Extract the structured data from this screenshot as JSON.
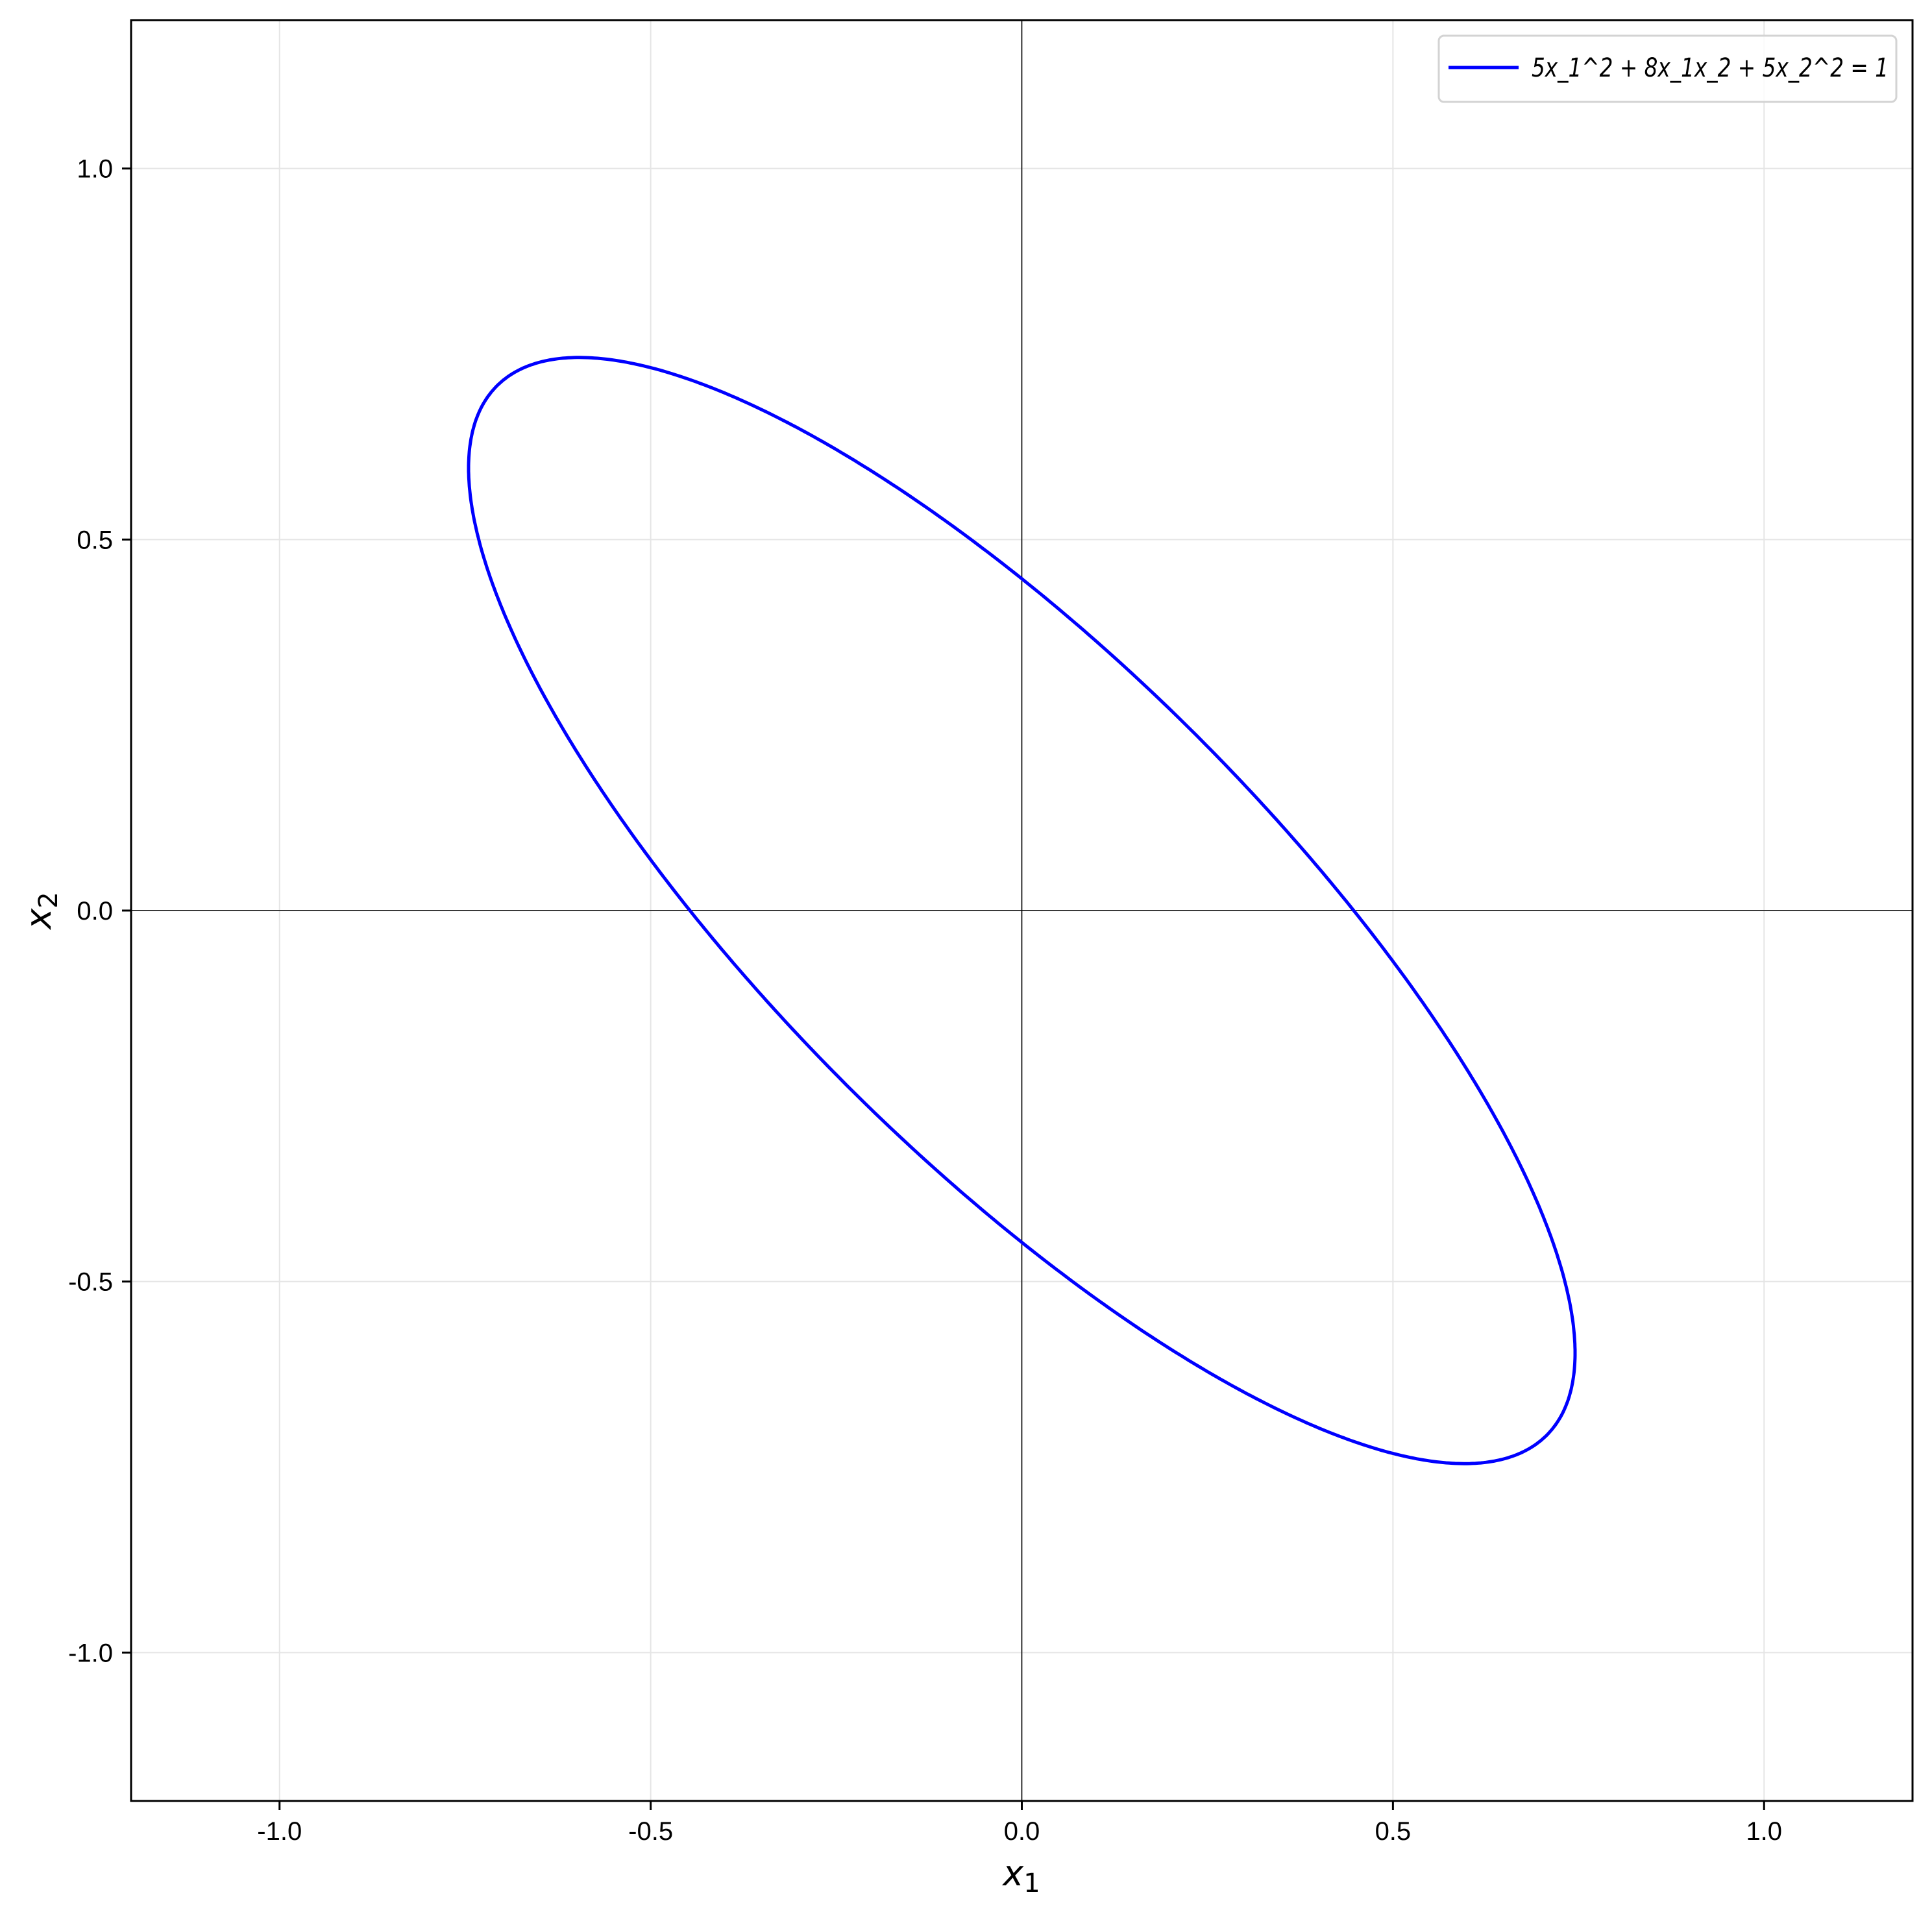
{
  "chart_data": {
    "type": "line",
    "title": "",
    "xlabel": "x_1",
    "ylabel": "x_2",
    "xlim": [
      -1.2,
      1.2
    ],
    "ylim": [
      -1.2,
      1.2
    ],
    "xticks": [
      -1.0,
      -0.5,
      0.0,
      0.5,
      1.0
    ],
    "yticks": [
      -1.0,
      -0.5,
      0.0,
      0.5,
      1.0
    ],
    "xtick_labels": [
      "-1.0",
      "-0.5",
      "0.0",
      "0.5",
      "1.0"
    ],
    "ytick_labels": [
      "-1.0",
      "-0.5",
      "0.0",
      "0.5",
      "1.0"
    ],
    "grid": true,
    "axis_lines_through_origin": true,
    "legend": {
      "placement": "upper-right",
      "entries": [
        "5x_1^2 + 8x_1x_2 + 5x_2^2 = 1"
      ]
    },
    "series": [
      {
        "name": "5x_1^2 + 8x_1x_2 + 5x_2^2 = 1",
        "color": "#0000ff",
        "equation": {
          "a": 5,
          "b": 8,
          "c": 5,
          "rhs": 1
        },
        "semi_major": 1.0,
        "semi_minor": 0.3333,
        "major_axis_direction": [
          1,
          -1
        ],
        "key_points": [
          [
            -0.447,
            0
          ],
          [
            0.447,
            0
          ],
          [
            0,
            0.447
          ],
          [
            0,
            -0.447
          ],
          [
            -0.6,
            0.75
          ],
          [
            0.6,
            -0.75
          ],
          [
            -0.75,
            0.6
          ],
          [
            0.75,
            -0.6
          ]
        ]
      }
    ]
  }
}
